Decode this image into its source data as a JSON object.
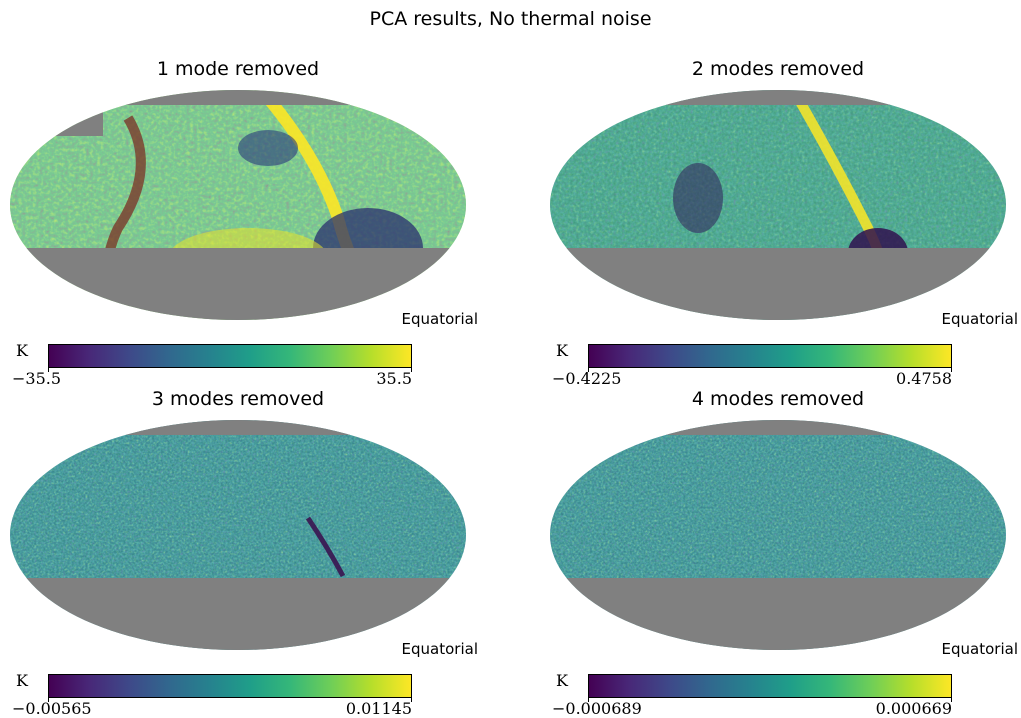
{
  "figure": {
    "title": "PCA results, No thermal noise"
  },
  "panels": [
    {
      "title": "1 mode removed",
      "coord_label": "Equatorial",
      "unit": "K",
      "cbar_min": "−35.5",
      "cbar_max": "35.5"
    },
    {
      "title": "2 modes removed",
      "coord_label": "Equatorial",
      "unit": "K",
      "cbar_min": "−0.4225",
      "cbar_max": "0.4758"
    },
    {
      "title": "3 modes removed",
      "coord_label": "Equatorial",
      "unit": "K",
      "cbar_min": "−0.00565",
      "cbar_max": "0.01145"
    },
    {
      "title": "4 modes removed",
      "coord_label": "Equatorial",
      "unit": "K",
      "cbar_min": "−0.000689",
      "cbar_max": "0.000669"
    }
  ],
  "colors": {
    "mask": "#808080",
    "colormap": [
      "#440154",
      "#3b528b",
      "#21918c",
      "#5ec962",
      "#fde725"
    ]
  }
}
